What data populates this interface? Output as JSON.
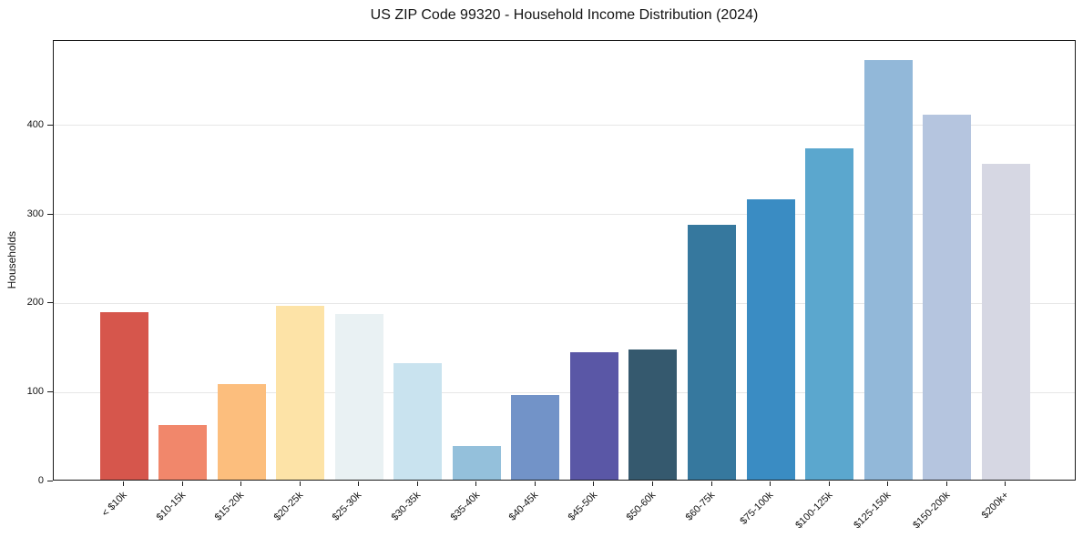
{
  "chart_data": {
    "type": "bar",
    "title": "US ZIP Code 99320 - Household Income Distribution (2024)",
    "xlabel": "",
    "ylabel": "Households",
    "categories": [
      "< $10k",
      "$10-15k",
      "$15-20k",
      "$20-25k",
      "$25-30k",
      "$30-35k",
      "$35-40k",
      "$40-45k",
      "$45-50k",
      "$50-60k",
      "$60-75k",
      "$75-100k",
      "$100-125k",
      "$125-150k",
      "$150-200k",
      "$200k+"
    ],
    "values": [
      188,
      61,
      107,
      195,
      186,
      131,
      38,
      95,
      143,
      146,
      286,
      315,
      372,
      471,
      410,
      355
    ],
    "bar_colors": [
      "#d6564c",
      "#f1876b",
      "#fcbe7d",
      "#fde3a7",
      "#e9f1f3",
      "#c9e3ef",
      "#94c0db",
      "#7293c8",
      "#5a57a6",
      "#35596e",
      "#36789e",
      "#3a8cc3",
      "#5ba7ce",
      "#92b8d9",
      "#b5c5df",
      "#d6d7e3"
    ],
    "yticks": [
      0,
      100,
      200,
      300,
      400
    ],
    "ylim": [
      0,
      495
    ],
    "grid": "horizontal-only",
    "grid_color": "#e7e7e7",
    "spine_color": "#1a1a1a",
    "text_color": "#141414",
    "background": "#ffffff",
    "legend": "none"
  }
}
